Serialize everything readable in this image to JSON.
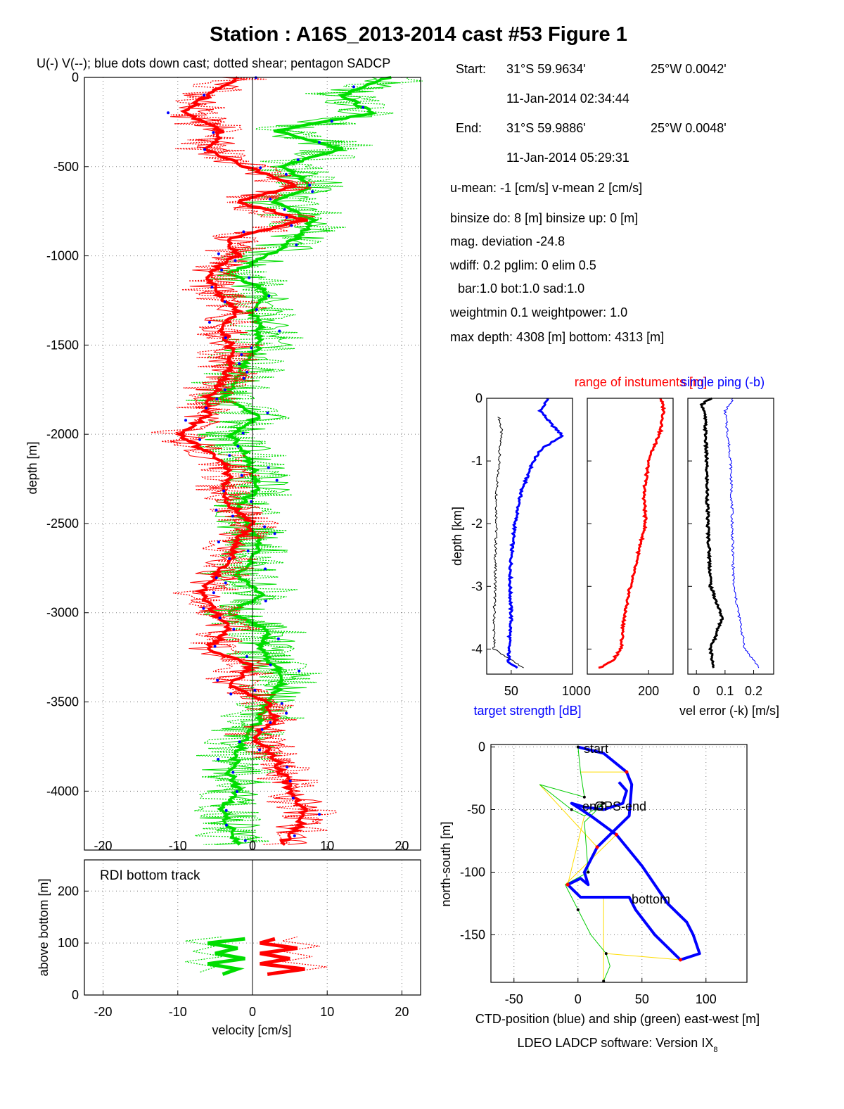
{
  "title": "Station : A16S_2013-2014 cast #53  Figure 1",
  "footer": {
    "software_main": "LDEO LADCP software: Version IX",
    "software_sub": "8"
  },
  "colors": {
    "u": "#ff0000",
    "v": "#00dd00",
    "dots": "#0000ff",
    "ctd": "#0000ff",
    "ship": "#00cc00",
    "link": "#ffdd00",
    "black": "#000000"
  },
  "info": {
    "start_label": "Start:",
    "start_lat": "31°S 59.9634'",
    "start_lon": "25°W  0.0042'",
    "start_time": "11-Jan-2014 02:34:44",
    "end_label": "End:",
    "end_lat": "31°S 59.9886'",
    "end_lon": "25°W  0.0048'",
    "end_time": "11-Jan-2014 05:29:31",
    "umean": "u-mean:  -1 [cm/s]    v-mean   2 [cm/s]",
    "binsize": "binsize do: 8 [m]  binsize up:  0 [m]",
    "magdev": "mag. deviation -24.8",
    "wdiff": "wdiff: 0.2  pglim: 0  elim 0.5",
    "bar": "bar:1.0 bot:1.0 sad:1.0",
    "weight": "weightmin 0.1  weightpower: 1.0",
    "maxdepth": "max depth: 4308 [m]   bottom: 4313 [m]"
  },
  "chart_data": [
    {
      "id": "velocity-profile",
      "type": "line",
      "title": "U(-) V(--); blue dots down cast; dotted shear; pentagon SADCP",
      "xlabel": "velocity [cm/s]",
      "ylabel": "depth [m]",
      "xlim": [
        -22.5,
        22.5
      ],
      "ylim": [
        -4330,
        0
      ],
      "xticks": [
        -20,
        -10,
        0,
        10,
        20
      ],
      "xtick_labels": [
        "-20",
        "-10",
        "0",
        "10",
        "20"
      ],
      "yticks": [
        0,
        -500,
        -1000,
        -1500,
        -2000,
        -2500,
        -3000,
        -3500,
        -4000
      ],
      "ytick_labels": [
        "0",
        "-500",
        "-1000",
        "-1500",
        "-2000",
        "-2500",
        "-3000",
        "-3500",
        "-4000"
      ],
      "grid": true,
      "series": [
        {
          "name": "U",
          "depth": [
            0,
            -100,
            -200,
            -300,
            -400,
            -500,
            -600,
            -700,
            -800,
            -900,
            -1000,
            -1100,
            -1200,
            -1300,
            -1400,
            -1500,
            -1600,
            -1700,
            -1800,
            -1900,
            -2000,
            -2100,
            -2200,
            -2300,
            -2400,
            -2500,
            -2600,
            -2700,
            -2800,
            -2900,
            -3000,
            -3100,
            -3200,
            -3300,
            -3400,
            -3500,
            -3600,
            -3700,
            -3800,
            -3900,
            -4000,
            -4100,
            -4200,
            -4300
          ],
          "values": [
            -2,
            -6,
            -9,
            -4,
            -6,
            -1,
            6,
            -2,
            7,
            -3,
            -2,
            -6,
            -5,
            -2,
            -4,
            -3,
            -3,
            -4,
            -6,
            -6,
            -10,
            -6,
            -3,
            -4,
            -3,
            0,
            -2,
            -3,
            -5,
            -7,
            -5,
            -3,
            -6,
            0,
            -3,
            2,
            3,
            0,
            3,
            4,
            5,
            7,
            6,
            4
          ]
        },
        {
          "name": "V",
          "depth": [
            0,
            -100,
            -200,
            -300,
            -400,
            -500,
            -600,
            -700,
            -800,
            -900,
            -1000,
            -1100,
            -1200,
            -1300,
            -1400,
            -1500,
            -1600,
            -1700,
            -1800,
            -1900,
            -2000,
            -2100,
            -2200,
            -2300,
            -2400,
            -2500,
            -2600,
            -2700,
            -2800,
            -2900,
            -3000,
            -3100,
            -3200,
            -3300,
            -3400,
            -3500,
            -3600,
            -3700,
            -3800,
            -3900,
            -4000,
            -4100,
            -4200,
            -4300
          ],
          "values": [
            18,
            12,
            16,
            3,
            12,
            4,
            8,
            3,
            8,
            6,
            2,
            -3,
            2,
            0,
            1,
            1,
            -1,
            -2,
            -4,
            1,
            -3,
            -1,
            0,
            1,
            -2,
            -1,
            1,
            0,
            -2,
            1,
            -3,
            2,
            1,
            3,
            4,
            2,
            1,
            -1,
            -2,
            -3,
            -2,
            -4,
            -3,
            -2
          ]
        }
      ]
    },
    {
      "id": "bottom-track",
      "type": "line",
      "title": "RDI bottom track",
      "xlabel": "velocity [cm/s]",
      "ylabel": "above bottom [m]",
      "xlim": [
        -22.5,
        22.5
      ],
      "ylim": [
        0,
        260
      ],
      "xticks": [
        -20,
        -10,
        0,
        10,
        20
      ],
      "xtick_labels": [
        "-20",
        "-10",
        "0",
        "10",
        "20"
      ],
      "yticks": [
        0,
        100,
        200
      ],
      "ytick_labels": [
        "0",
        "100",
        "200"
      ],
      "grid": true,
      "series": [
        {
          "name": "U",
          "height": [
            40,
            50,
            60,
            70,
            80,
            90,
            100,
            108
          ],
          "values": [
            2,
            7,
            1,
            5,
            1,
            6,
            1,
            3
          ]
        },
        {
          "name": "V",
          "height": [
            40,
            50,
            60,
            70,
            80,
            90,
            100,
            108
          ],
          "values": [
            -4,
            -2,
            -6,
            -1,
            -5,
            -2,
            -6,
            -1
          ]
        }
      ]
    },
    {
      "id": "target-strength",
      "type": "line",
      "xlabel": "target strength [dB]",
      "ylabel": "depth [km]",
      "xlim": [
        30,
        100
      ],
      "ylim": [
        -4.4,
        0
      ],
      "xticks": [
        50,
        100
      ],
      "xtick_labels": [
        "50",
        "100"
      ],
      "yticks": [
        0,
        -1,
        -2,
        -3,
        -4
      ],
      "ytick_labels": [
        "0",
        "-1",
        "-2",
        "-3",
        "-4"
      ],
      "grid": false,
      "series": [
        {
          "name": "up",
          "depth": [
            -0.3,
            -0.5,
            -1,
            -1.5,
            -2,
            -2.5,
            -3,
            -3.5,
            -4,
            -4.3
          ],
          "values": [
            40,
            42,
            40,
            38,
            38,
            37,
            37,
            36,
            36,
            60
          ]
        },
        {
          "name": "down",
          "depth": [
            0,
            -0.2,
            -0.4,
            -0.6,
            -0.8,
            -1,
            -1.5,
            -2,
            -2.5,
            -3,
            -3.5,
            -4,
            -4.2,
            -4.3
          ],
          "values": [
            80,
            74,
            82,
            92,
            75,
            68,
            58,
            53,
            50,
            49,
            50,
            48,
            48,
            55
          ]
        }
      ]
    },
    {
      "id": "range-of-instruments",
      "type": "line",
      "title": "range of instuments [m]",
      "xlim": [
        0,
        280
      ],
      "ylim": [
        -4.4,
        0
      ],
      "xticks": [
        0,
        200
      ],
      "xtick_labels": [
        "0",
        "200"
      ],
      "series": [
        {
          "name": "range",
          "depth": [
            0,
            -0.2,
            -0.5,
            -1,
            -1.5,
            -2,
            -2.5,
            -3,
            -3.5,
            -4,
            -4.2,
            -4.3
          ],
          "values": [
            240,
            250,
            240,
            200,
            185,
            190,
            165,
            140,
            120,
            110,
            80,
            40
          ]
        }
      ]
    },
    {
      "id": "velocity-error",
      "type": "line",
      "title": "single ping (-b)",
      "xlabel": "vel error (-k) [m/s]",
      "xlim": [
        -0.03,
        0.27
      ],
      "ylim": [
        -4.4,
        0
      ],
      "xticks": [
        0,
        0.1,
        0.2
      ],
      "xtick_labels": [
        "0",
        "0.1",
        "0.2"
      ],
      "series": [
        {
          "name": "vel error",
          "depth": [
            0,
            -0.1,
            -0.3,
            -1,
            -2,
            -3,
            -3.5,
            -4,
            -4.3
          ],
          "values": [
            0.05,
            0.02,
            0.03,
            0.035,
            0.04,
            0.05,
            0.09,
            0.05,
            0.06
          ]
        },
        {
          "name": "single ping",
          "depth": [
            0,
            -0.2,
            -1,
            -2,
            -3,
            -3.5,
            -4,
            -4.3
          ],
          "values": [
            0.13,
            0.1,
            0.12,
            0.125,
            0.13,
            0.15,
            0.17,
            0.22
          ]
        }
      ]
    },
    {
      "id": "position-track",
      "type": "line",
      "xlabel": "CTD-position (blue) and ship (green) east-west [m]",
      "ylabel": "north-south [m]",
      "xlim": [
        -68,
        132
      ],
      "ylim": [
        -188,
        2
      ],
      "xticks": [
        -50,
        0,
        50,
        100
      ],
      "xtick_labels": [
        "-50",
        "0",
        "50",
        "100"
      ],
      "yticks": [
        0,
        -50,
        -100,
        -150
      ],
      "ytick_labels": [
        "0",
        "-50",
        "-100",
        "-150"
      ],
      "grid": true,
      "annotations": [
        "start",
        "end",
        "GPS-end",
        "bottom"
      ],
      "series": [
        {
          "name": "CTD",
          "x": [
            0,
            20,
            38,
            42,
            40,
            30,
            15,
            5,
            8,
            2,
            -8,
            2,
            20,
            40,
            45,
            60,
            80,
            95,
            90,
            85,
            70,
            50,
            30,
            10,
            -5,
            5,
            20,
            35,
            38,
            32
          ],
          "y": [
            0,
            -5,
            -20,
            -30,
            -55,
            -65,
            -80,
            -100,
            -110,
            -105,
            -110,
            -120,
            -120,
            -120,
            -130,
            -150,
            -170,
            -165,
            -150,
            -140,
            -125,
            -95,
            -70,
            -55,
            -45,
            -48,
            -50,
            -45,
            -35,
            -28
          ]
        },
        {
          "name": "ship",
          "x": [
            0,
            2,
            5,
            -30,
            -5,
            5,
            20,
            5,
            8,
            -10,
            0,
            10,
            22,
            25,
            20
          ],
          "y": [
            0,
            -20,
            -40,
            -30,
            -50,
            -55,
            -45,
            -60,
            -100,
            -110,
            -130,
            -150,
            -165,
            -175,
            -187
          ]
        }
      ]
    }
  ]
}
